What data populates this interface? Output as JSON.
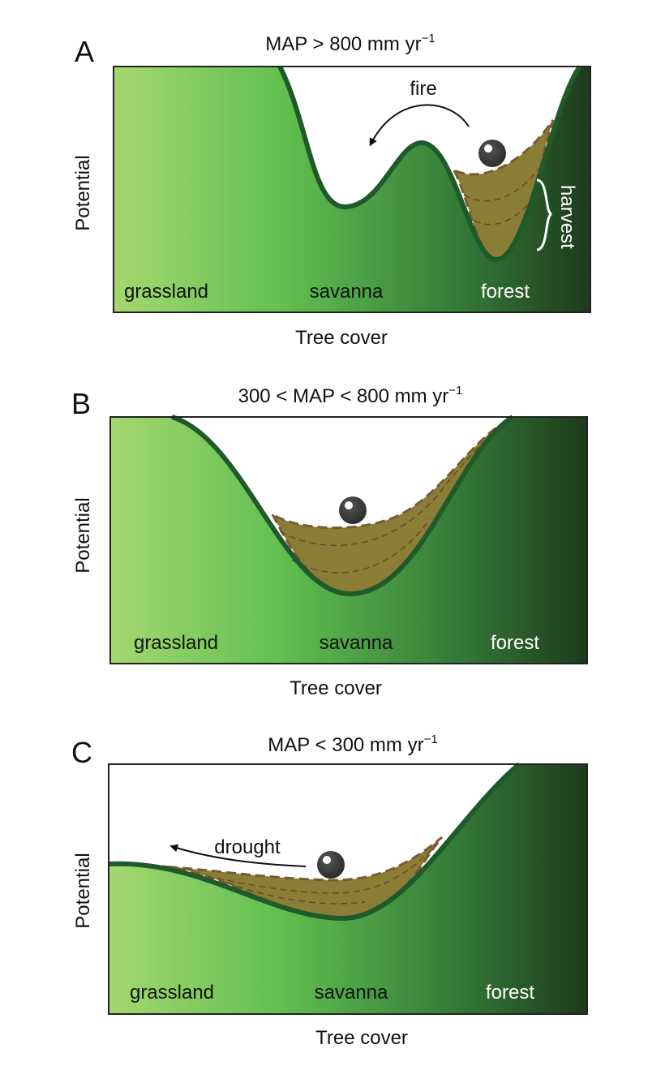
{
  "panels": [
    {
      "letter": "A",
      "title": "MAP > 800 mm yr",
      "title_sup": "−1",
      "y_label": "Potential",
      "x_label": "Tree cover",
      "regions": [
        "grassland",
        "savanna",
        "forest"
      ],
      "annotations": [
        "fire",
        "harvest"
      ]
    },
    {
      "letter": "B",
      "title": "300 < MAP < 800 mm yr",
      "title_sup": "−1",
      "y_label": "Potential",
      "x_label": "Tree cover",
      "regions": [
        "grassland",
        "savanna",
        "forest"
      ]
    },
    {
      "letter": "C",
      "title": "MAP < 300 mm yr",
      "title_sup": "−1",
      "y_label": "Potential",
      "x_label": "Tree cover",
      "regions": [
        "grassland",
        "savanna",
        "forest"
      ],
      "annotations": [
        "drought"
      ]
    }
  ]
}
